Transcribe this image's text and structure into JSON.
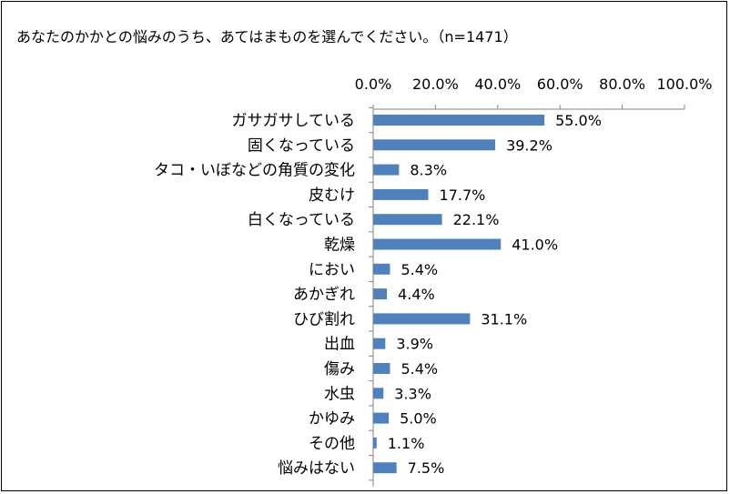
{
  "chart_data": {
    "type": "bar",
    "orientation": "horizontal",
    "title": "あなたのかかとの悩みのうち、あてはまものを選んでください。（n=1471）",
    "categories": [
      "ガサガサしている",
      "固くなっている",
      "タコ・いぼなどの角質の変化",
      "皮むけ",
      "白くなっている",
      "乾燥",
      "におい",
      "あかぎれ",
      "ひび割れ",
      "出血",
      "傷み",
      "水虫",
      "かゆみ",
      "その他",
      "悩みはない"
    ],
    "values": [
      55.0,
      39.2,
      8.3,
      17.7,
      22.1,
      41.0,
      5.4,
      4.4,
      31.1,
      3.9,
      5.4,
      3.3,
      5.0,
      1.1,
      7.5
    ],
    "data_labels": [
      "55.0%",
      "39.2%",
      "8.3%",
      "17.7%",
      "22.1%",
      "41.0%",
      "5.4%",
      "4.4%",
      "31.1%",
      "3.9%",
      "5.4%",
      "3.3%",
      "5.0%",
      "1.1%",
      "7.5%"
    ],
    "x_ticks": [
      "0.0%",
      "20.0%",
      "40.0%",
      "60.0%",
      "80.0%",
      "100.0%"
    ],
    "xlim": [
      0,
      100
    ],
    "axis_position": "top",
    "grid": false,
    "bar_color": "#4F81BD"
  }
}
